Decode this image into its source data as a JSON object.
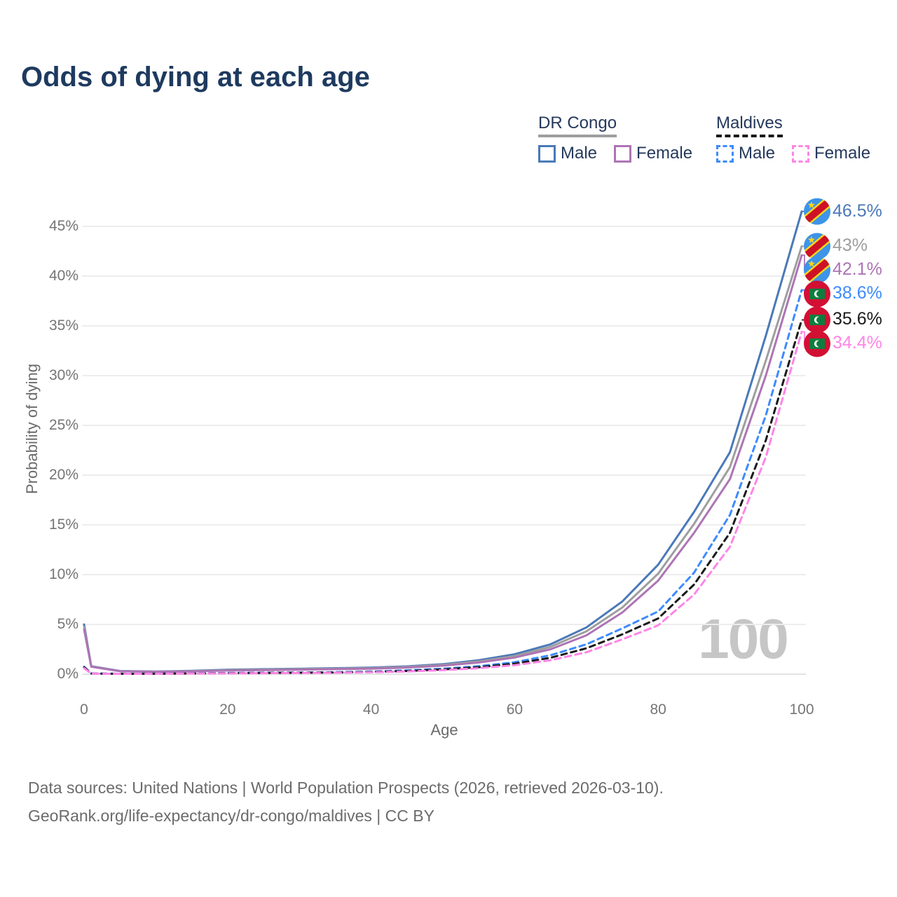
{
  "title": "Odds of dying at each age",
  "legend": {
    "groups": [
      {
        "label": "DR Congo",
        "underline_style": "solid",
        "underline_color": "#9e9e9e",
        "items": [
          {
            "label": "Male",
            "color": "#4a79b8",
            "dash": false
          },
          {
            "label": "Female",
            "color": "#ad74b5",
            "dash": false
          }
        ]
      },
      {
        "label": "Maldives",
        "underline_style": "dashed",
        "underline_color": "#1a1a1a",
        "items": [
          {
            "label": "Male",
            "color": "#3d8bfd",
            "dash": true
          },
          {
            "label": "Female",
            "color": "#ff85e6",
            "dash": true
          }
        ]
      }
    ]
  },
  "chart_data": {
    "type": "line",
    "title": "Odds of dying at each age",
    "xlabel": "Age",
    "ylabel": "Probability of dying",
    "xlim": [
      0,
      100
    ],
    "ylim": [
      0,
      47
    ],
    "grid": "horizontal-only",
    "x_ticks": [
      0,
      20,
      40,
      60,
      80,
      100
    ],
    "y_ticks": [
      {
        "value": 0,
        "label": "0%"
      },
      {
        "value": 5,
        "label": "5%"
      },
      {
        "value": 10,
        "label": "10%"
      },
      {
        "value": 15,
        "label": "15%"
      },
      {
        "value": 20,
        "label": "20%"
      },
      {
        "value": 25,
        "label": "25%"
      },
      {
        "value": 30,
        "label": "30%"
      },
      {
        "value": 35,
        "label": "35%"
      },
      {
        "value": 40,
        "label": "40%"
      },
      {
        "value": 45,
        "label": "45%"
      }
    ],
    "watermark": "100",
    "ages": [
      0,
      1,
      5,
      10,
      15,
      20,
      25,
      30,
      35,
      40,
      45,
      50,
      55,
      60,
      65,
      70,
      75,
      80,
      85,
      90,
      95,
      100
    ],
    "series": [
      {
        "name": "DR Congo — Male",
        "country": "DR Congo",
        "sex": "Male",
        "flag": "cd",
        "color": "#4a79b8",
        "dash": null,
        "end_label": "46.5%",
        "values": [
          5.0,
          0.8,
          0.32,
          0.27,
          0.33,
          0.45,
          0.5,
          0.55,
          0.6,
          0.66,
          0.78,
          1.0,
          1.4,
          2.0,
          3.0,
          4.7,
          7.3,
          11.0,
          16.3,
          22.3,
          34.0,
          46.5
        ]
      },
      {
        "name": "DR Congo — Both sexes",
        "country": "DR Congo",
        "sex": "Both",
        "flag": "cd",
        "color": "#9e9e9e",
        "dash": null,
        "end_label": "43%",
        "values": [
          4.75,
          0.78,
          0.3,
          0.25,
          0.3,
          0.4,
          0.45,
          0.5,
          0.55,
          0.6,
          0.72,
          0.92,
          1.28,
          1.82,
          2.75,
          4.3,
          6.7,
          10.1,
          15.1,
          20.8,
          31.5,
          43.0
        ]
      },
      {
        "name": "DR Congo — Female",
        "country": "DR Congo",
        "sex": "Female",
        "flag": "cd",
        "color": "#ad74b5",
        "dash": null,
        "end_label": "42.1%",
        "values": [
          4.5,
          0.75,
          0.29,
          0.24,
          0.28,
          0.36,
          0.4,
          0.45,
          0.5,
          0.55,
          0.66,
          0.85,
          1.17,
          1.67,
          2.5,
          3.9,
          6.2,
          9.4,
          14.2,
          19.6,
          30.0,
          42.1
        ]
      },
      {
        "name": "Maldives — Male",
        "country": "Maldives",
        "sex": "Male",
        "flag": "mv",
        "color": "#3d8bfd",
        "dash": [
          8,
          6
        ],
        "end_label": "38.6%",
        "values": [
          0.75,
          0.07,
          0.04,
          0.05,
          0.08,
          0.12,
          0.14,
          0.16,
          0.2,
          0.26,
          0.38,
          0.55,
          0.8,
          1.2,
          1.9,
          3.0,
          4.6,
          6.3,
          10.2,
          16.0,
          26.0,
          38.6
        ]
      },
      {
        "name": "Maldives — Both sexes",
        "country": "Maldives",
        "sex": "Both",
        "flag": "mv",
        "color": "#1a1a1a",
        "dash": [
          8,
          6
        ],
        "end_label": "35.6%",
        "values": [
          0.68,
          0.06,
          0.035,
          0.045,
          0.07,
          0.1,
          0.12,
          0.14,
          0.17,
          0.22,
          0.32,
          0.47,
          0.7,
          1.05,
          1.65,
          2.6,
          4.0,
          5.6,
          9.0,
          14.2,
          23.5,
          35.6
        ]
      },
      {
        "name": "Maldives — Female",
        "country": "Maldives",
        "sex": "Female",
        "flag": "mv",
        "color": "#ff85e6",
        "dash": [
          9,
          6
        ],
        "end_label": "34.4%",
        "values": [
          0.6,
          0.055,
          0.03,
          0.04,
          0.06,
          0.08,
          0.1,
          0.12,
          0.15,
          0.19,
          0.27,
          0.4,
          0.6,
          0.9,
          1.4,
          2.2,
          3.5,
          4.9,
          8.0,
          12.8,
          21.8,
          34.4
        ]
      }
    ],
    "flag_colors": {
      "cd": {
        "field": "#3d94e8",
        "stripe": "#ce1126",
        "fimbriation": "#f7d618",
        "star": "#f7d618"
      },
      "mv": {
        "field": "#d21034",
        "rect": "#0b7e3e",
        "crescent": "#ffffff"
      }
    }
  },
  "footer": {
    "line1": "Data sources: United Nations | World Population Prospects (2026, retrieved 2026-03-10).",
    "line2": "GeoRank.org/life-expectancy/dr-congo/maldives | CC BY"
  }
}
